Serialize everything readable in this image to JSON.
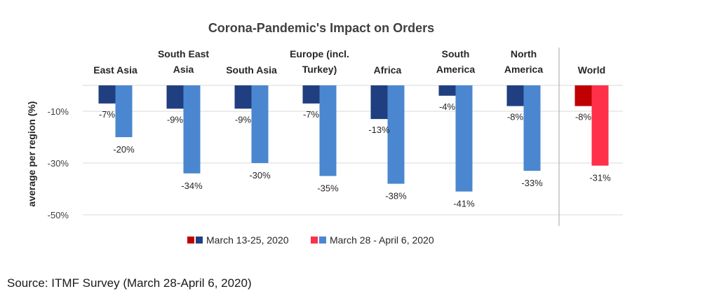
{
  "source": "Source: ITMF Survey (March 28-April 6, 2020)",
  "colors": {
    "series1": "#203f80",
    "series2": "#4a87d0",
    "series1_world": "#c00000",
    "series2_world": "#ff3049",
    "grid": "#d9d9d9",
    "divider": "#a6a6a6"
  },
  "chart_data": {
    "type": "bar",
    "title": "Corona-Pandemic's Impact on Orders",
    "ylabel": "average per region (%)",
    "xlabel": "",
    "ylim": [
      -52,
      0
    ],
    "yticks": [
      -10,
      -30,
      -50
    ],
    "ytick_labels": [
      "-10%",
      "-30%",
      "-50%"
    ],
    "legend_position": "bottom",
    "categories": [
      [
        "East Asia"
      ],
      [
        "South East",
        "Asia"
      ],
      [
        "South Asia"
      ],
      [
        "Europe (incl.",
        "Turkey)"
      ],
      [
        "Africa"
      ],
      [
        "South",
        "America"
      ],
      [
        "North",
        "America"
      ],
      [
        "World"
      ]
    ],
    "series": [
      {
        "name": "March 13-25, 2020",
        "values": [
          -7,
          -9,
          -9,
          -7,
          -13,
          -4,
          -8,
          -8
        ],
        "labels": [
          "-7%",
          "-9%",
          "-9%",
          "-7%",
          "-13%",
          "-4%",
          "-8%",
          "-8%"
        ]
      },
      {
        "name": "March 28 - April 6, 2020",
        "values": [
          -20,
          -34,
          -30,
          -35,
          -38,
          -41,
          -33,
          -31
        ],
        "labels": [
          "-20%",
          "-34%",
          "-30%",
          "-35%",
          "-38%",
          "-41%",
          "-33%",
          "-31%"
        ]
      }
    ]
  }
}
